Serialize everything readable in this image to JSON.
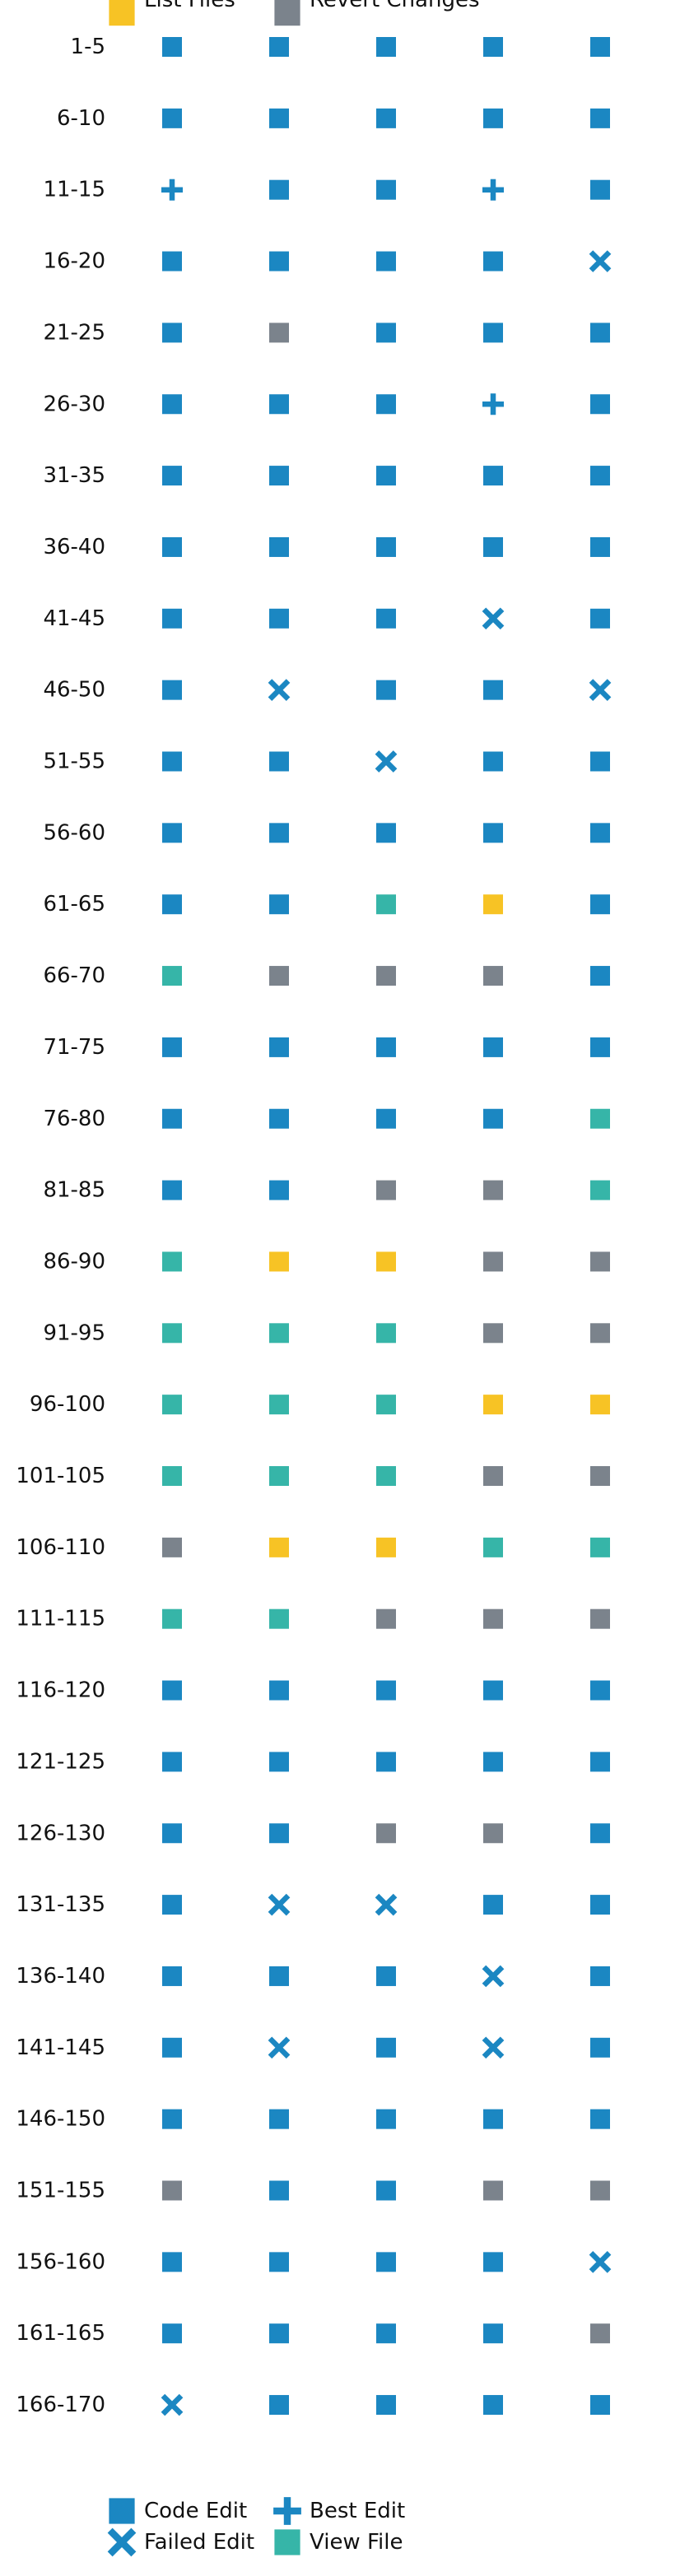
{
  "chart_data": {
    "type": "scatter",
    "row_labels": [
      "1-5",
      "6-10",
      "11-15",
      "16-20",
      "21-25",
      "26-30",
      "31-35",
      "36-40",
      "41-45",
      "46-50",
      "51-55",
      "56-60",
      "61-65",
      "66-70",
      "71-75",
      "76-80",
      "81-85",
      "86-90",
      "91-95",
      "96-100",
      "101-105",
      "106-110",
      "111-115",
      "116-120",
      "121-125",
      "126-130",
      "131-135",
      "136-140",
      "141-145",
      "146-150",
      "151-155",
      "156-160",
      "161-165",
      "166-170"
    ],
    "column_count": 5,
    "grid": false,
    "legend_placement": "bottom-center",
    "markers": {
      "code_edit": {
        "label": "Code Edit",
        "shape": "square",
        "color": "#1b87c2"
      },
      "best_edit": {
        "label": "Best Edit",
        "shape": "plus",
        "color": "#1b87c2"
      },
      "failed_edit": {
        "label": "Failed Edit",
        "shape": "x",
        "color": "#1b87c2"
      },
      "view_file": {
        "label": "View File",
        "shape": "square",
        "color": "#36b5a8"
      },
      "list_files": {
        "label": "List Files",
        "shape": "square",
        "color": "#f7c325"
      },
      "revert_changes": {
        "label": "Revert Changes",
        "shape": "square",
        "color": "#7b838c"
      }
    },
    "legend_order": [
      [
        "code_edit",
        "failed_edit",
        "list_files"
      ],
      [
        "best_edit",
        "view_file",
        "revert_changes"
      ]
    ],
    "rows": [
      [
        "code_edit",
        "code_edit",
        "code_edit",
        "code_edit",
        "code_edit"
      ],
      [
        "code_edit",
        "code_edit",
        "code_edit",
        "code_edit",
        "code_edit"
      ],
      [
        "best_edit",
        "code_edit",
        "code_edit",
        "best_edit",
        "code_edit"
      ],
      [
        "code_edit",
        "code_edit",
        "code_edit",
        "code_edit",
        "failed_edit"
      ],
      [
        "code_edit",
        "revert_changes",
        "code_edit",
        "code_edit",
        "code_edit"
      ],
      [
        "code_edit",
        "code_edit",
        "code_edit",
        "best_edit",
        "code_edit"
      ],
      [
        "code_edit",
        "code_edit",
        "code_edit",
        "code_edit",
        "code_edit"
      ],
      [
        "code_edit",
        "code_edit",
        "code_edit",
        "code_edit",
        "code_edit"
      ],
      [
        "code_edit",
        "code_edit",
        "code_edit",
        "failed_edit",
        "code_edit"
      ],
      [
        "code_edit",
        "failed_edit",
        "code_edit",
        "code_edit",
        "failed_edit"
      ],
      [
        "code_edit",
        "code_edit",
        "failed_edit",
        "code_edit",
        "code_edit"
      ],
      [
        "code_edit",
        "code_edit",
        "code_edit",
        "code_edit",
        "code_edit"
      ],
      [
        "code_edit",
        "code_edit",
        "view_file",
        "list_files",
        "code_edit"
      ],
      [
        "view_file",
        "revert_changes",
        "revert_changes",
        "revert_changes",
        "code_edit"
      ],
      [
        "code_edit",
        "code_edit",
        "code_edit",
        "code_edit",
        "code_edit"
      ],
      [
        "code_edit",
        "code_edit",
        "code_edit",
        "code_edit",
        "view_file"
      ],
      [
        "code_edit",
        "code_edit",
        "revert_changes",
        "revert_changes",
        "view_file"
      ],
      [
        "view_file",
        "list_files",
        "list_files",
        "revert_changes",
        "revert_changes"
      ],
      [
        "view_file",
        "view_file",
        "view_file",
        "revert_changes",
        "revert_changes"
      ],
      [
        "view_file",
        "view_file",
        "view_file",
        "list_files",
        "list_files"
      ],
      [
        "view_file",
        "view_file",
        "view_file",
        "revert_changes",
        "revert_changes"
      ],
      [
        "revert_changes",
        "list_files",
        "list_files",
        "view_file",
        "view_file"
      ],
      [
        "view_file",
        "view_file",
        "revert_changes",
        "revert_changes",
        "revert_changes"
      ],
      [
        "code_edit",
        "code_edit",
        "code_edit",
        "code_edit",
        "code_edit"
      ],
      [
        "code_edit",
        "code_edit",
        "code_edit",
        "code_edit",
        "code_edit"
      ],
      [
        "code_edit",
        "code_edit",
        "revert_changes",
        "revert_changes",
        "code_edit"
      ],
      [
        "code_edit",
        "failed_edit",
        "failed_edit",
        "code_edit",
        "code_edit"
      ],
      [
        "code_edit",
        "code_edit",
        "code_edit",
        "failed_edit",
        "code_edit"
      ],
      [
        "code_edit",
        "failed_edit",
        "code_edit",
        "failed_edit",
        "code_edit"
      ],
      [
        "code_edit",
        "code_edit",
        "code_edit",
        "code_edit",
        "code_edit"
      ],
      [
        "revert_changes",
        "code_edit",
        "code_edit",
        "revert_changes",
        "revert_changes"
      ],
      [
        "code_edit",
        "code_edit",
        "code_edit",
        "code_edit",
        "failed_edit"
      ],
      [
        "code_edit",
        "code_edit",
        "code_edit",
        "code_edit",
        "revert_changes"
      ],
      [
        "failed_edit",
        "code_edit",
        "code_edit",
        "code_edit",
        "code_edit"
      ]
    ]
  }
}
